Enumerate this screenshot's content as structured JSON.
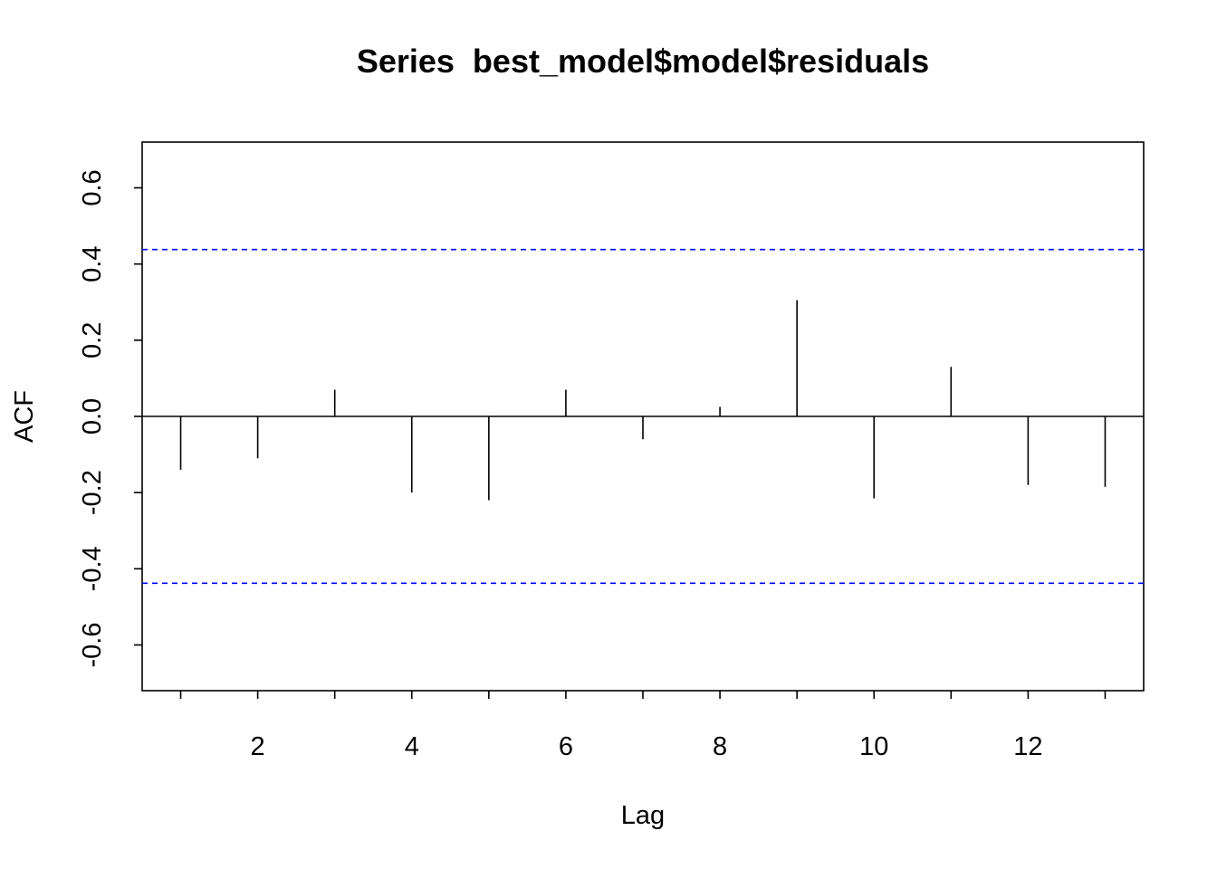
{
  "chart_data": {
    "type": "bar",
    "title": "Series  best_model$model$residuals",
    "xlabel": "Lag",
    "ylabel": "ACF",
    "xlim": [
      0.5,
      13.5
    ],
    "ylim": [
      -0.72,
      0.72
    ],
    "x_ticks": [
      1,
      2,
      3,
      4,
      5,
      6,
      7,
      8,
      9,
      10,
      11,
      12,
      13
    ],
    "x_tick_labels": [
      "",
      "2",
      "",
      "4",
      "",
      "6",
      "",
      "8",
      "",
      "10",
      "",
      "12",
      ""
    ],
    "y_ticks": [
      -0.6,
      -0.4,
      -0.2,
      0.0,
      0.2,
      0.4,
      0.6
    ],
    "y_tick_labels": [
      "-0.6",
      "-0.4",
      "-0.2",
      "0.0",
      "0.2",
      "0.4",
      "0.6"
    ],
    "x": [
      1,
      2,
      3,
      4,
      5,
      6,
      7,
      8,
      9,
      10,
      11,
      12,
      13
    ],
    "values": [
      -0.14,
      -0.11,
      0.07,
      -0.2,
      -0.22,
      0.07,
      -0.06,
      0.025,
      0.305,
      -0.215,
      0.13,
      -0.18,
      -0.185
    ],
    "confidence_bounds": [
      -0.438,
      0.438
    ],
    "grid": false,
    "colors": {
      "spikes": "#000000",
      "bounds": "#0000ff",
      "zero_line": "#000000"
    }
  }
}
